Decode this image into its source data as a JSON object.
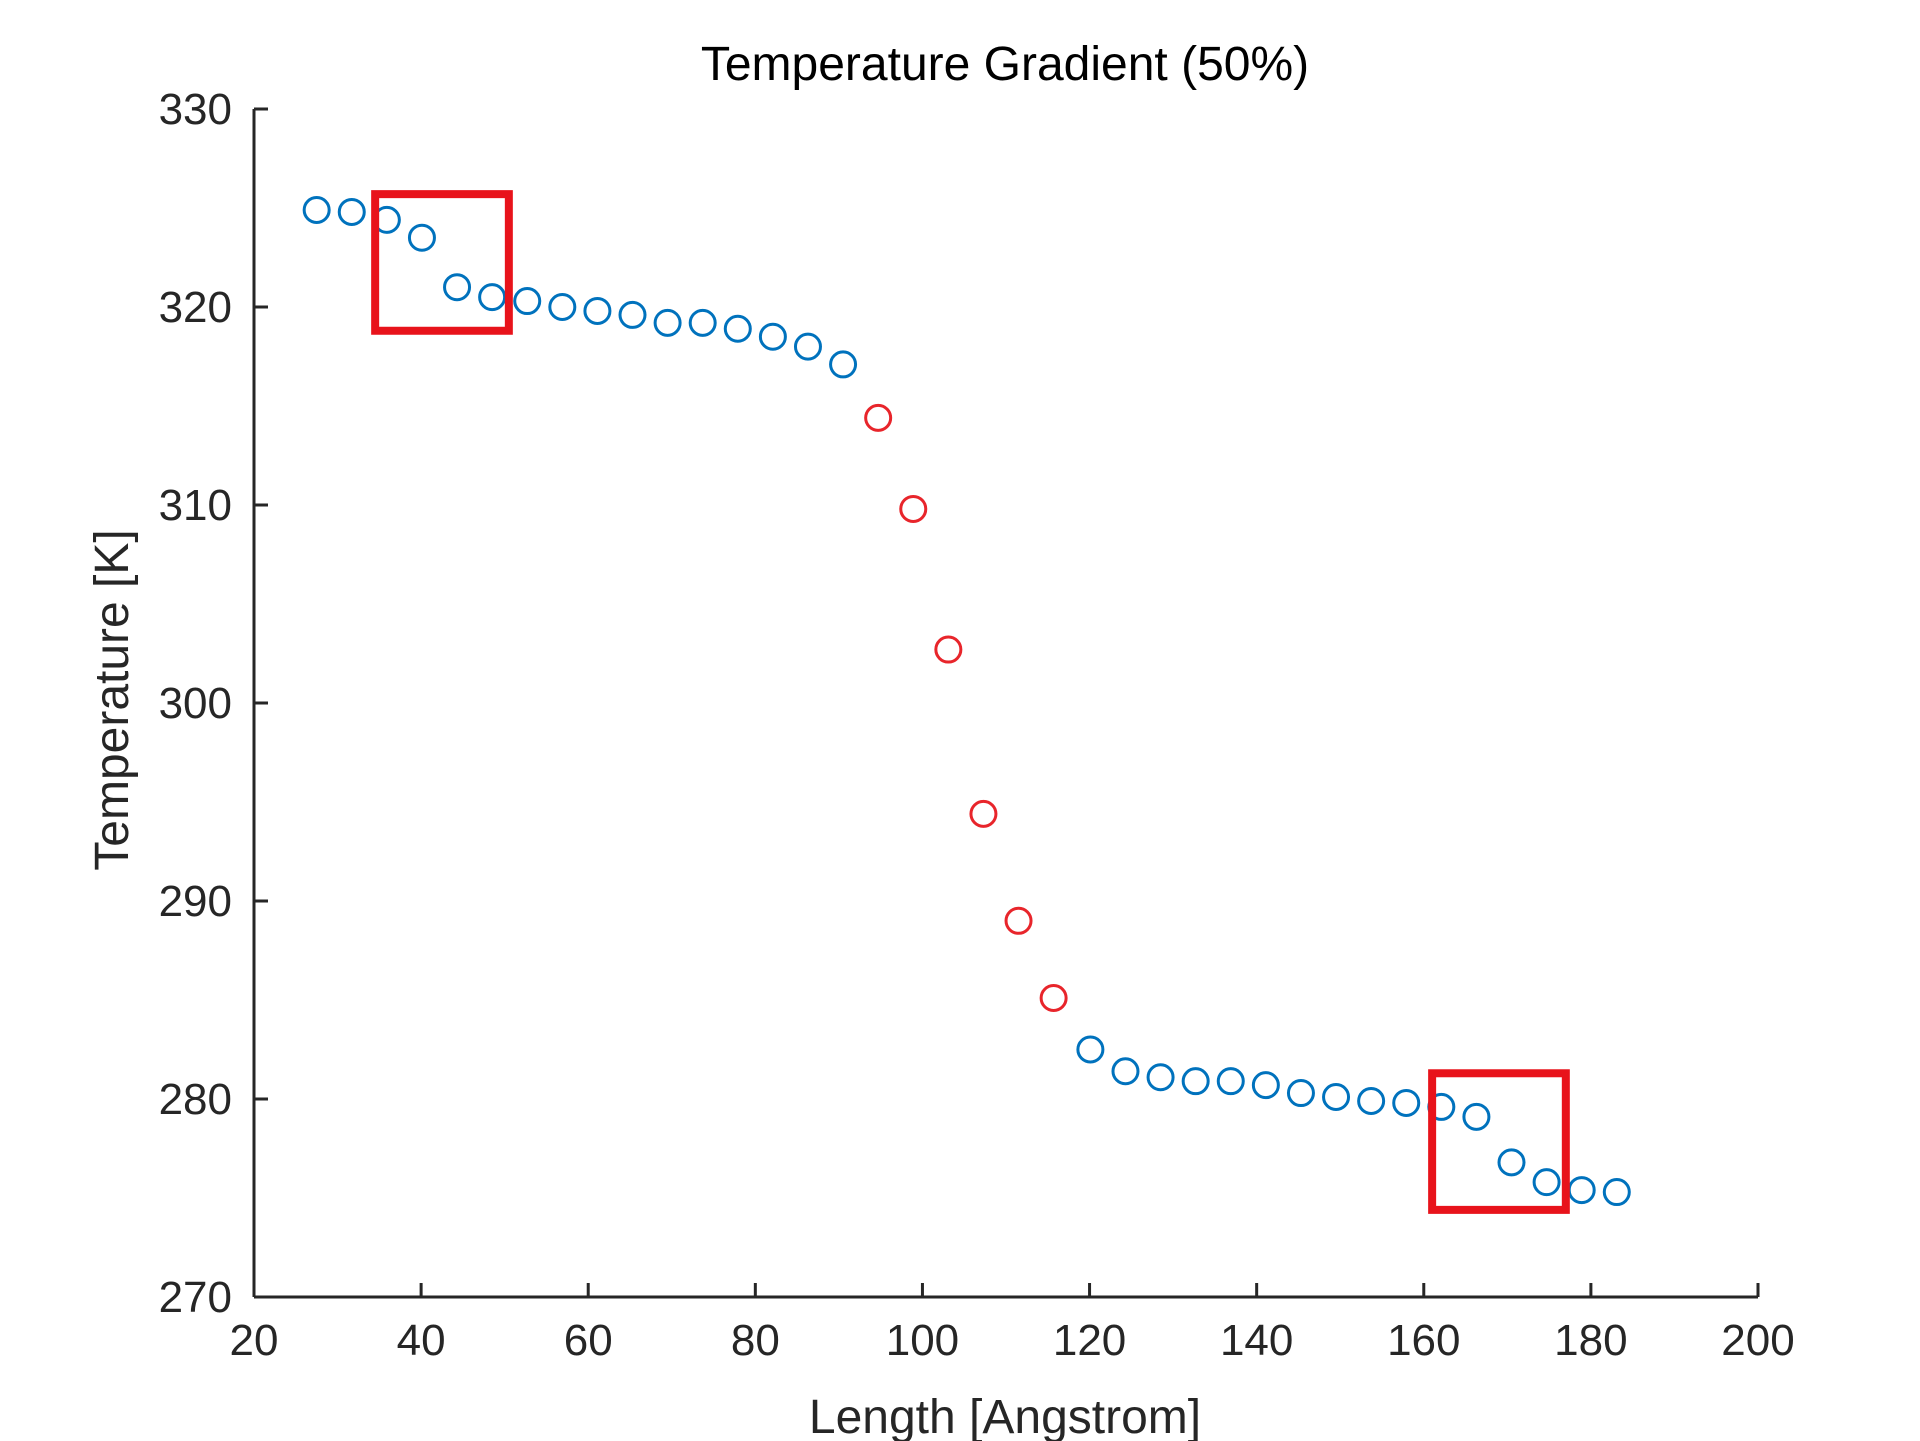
{
  "chart_data": {
    "type": "scatter",
    "title": "Temperature Gradient (50%)",
    "xlabel": "Length [Angstrom]",
    "ylabel": "Temperature [K]",
    "xlim": [
      20,
      200
    ],
    "ylim": [
      270,
      330
    ],
    "xticks": [
      "20",
      "40",
      "60",
      "80",
      "100",
      "120",
      "140",
      "160",
      "180",
      "200"
    ],
    "yticks": [
      "270",
      "280",
      "290",
      "300",
      "310",
      "320",
      "330"
    ],
    "grid": false,
    "series": [
      {
        "color": "#0072BD",
        "marker": "circle-open",
        "points": [
          {
            "x": 27.5,
            "y": 324.9
          },
          {
            "x": 31.7,
            "y": 324.8
          },
          {
            "x": 35.9,
            "y": 324.4
          },
          {
            "x": 40.1,
            "y": 323.5
          },
          {
            "x": 44.3,
            "y": 321.0
          },
          {
            "x": 48.5,
            "y": 320.5
          },
          {
            "x": 52.7,
            "y": 320.3
          },
          {
            "x": 56.9,
            "y": 320.0
          },
          {
            "x": 61.1,
            "y": 319.8
          },
          {
            "x": 65.3,
            "y": 319.6
          },
          {
            "x": 69.5,
            "y": 319.2
          },
          {
            "x": 73.7,
            "y": 319.2
          },
          {
            "x": 77.9,
            "y": 318.9
          },
          {
            "x": 82.1,
            "y": 318.5
          },
          {
            "x": 86.3,
            "y": 318.0
          },
          {
            "x": 90.5,
            "y": 317.1
          },
          {
            "x": 120.1,
            "y": 282.5
          },
          {
            "x": 124.3,
            "y": 281.4
          },
          {
            "x": 128.5,
            "y": 281.1
          },
          {
            "x": 132.7,
            "y": 280.9
          },
          {
            "x": 136.9,
            "y": 280.9
          },
          {
            "x": 141.1,
            "y": 280.7
          },
          {
            "x": 145.3,
            "y": 280.3
          },
          {
            "x": 149.5,
            "y": 280.1
          },
          {
            "x": 153.7,
            "y": 279.9
          },
          {
            "x": 157.9,
            "y": 279.8
          },
          {
            "x": 162.1,
            "y": 279.6
          },
          {
            "x": 166.3,
            "y": 279.1
          },
          {
            "x": 170.5,
            "y": 276.8
          },
          {
            "x": 174.7,
            "y": 275.8
          },
          {
            "x": 178.9,
            "y": 275.4
          },
          {
            "x": 183.1,
            "y": 275.3
          }
        ]
      },
      {
        "color": "#E8252B",
        "marker": "circle-open",
        "points": [
          {
            "x": 94.7,
            "y": 314.4
          },
          {
            "x": 98.9,
            "y": 309.8
          },
          {
            "x": 103.1,
            "y": 302.7
          },
          {
            "x": 107.3,
            "y": 294.4
          },
          {
            "x": 111.5,
            "y": 289.0
          },
          {
            "x": 115.7,
            "y": 285.1
          }
        ]
      }
    ],
    "annotations": [
      {
        "type": "rectangle",
        "color": "#E8131B",
        "x_range": [
          34.5,
          50.5
        ],
        "y_range": [
          318.8,
          325.7
        ]
      },
      {
        "type": "rectangle",
        "color": "#E8131B",
        "x_range": [
          161.0,
          177.0
        ],
        "y_range": [
          274.4,
          281.3
        ]
      }
    ]
  }
}
